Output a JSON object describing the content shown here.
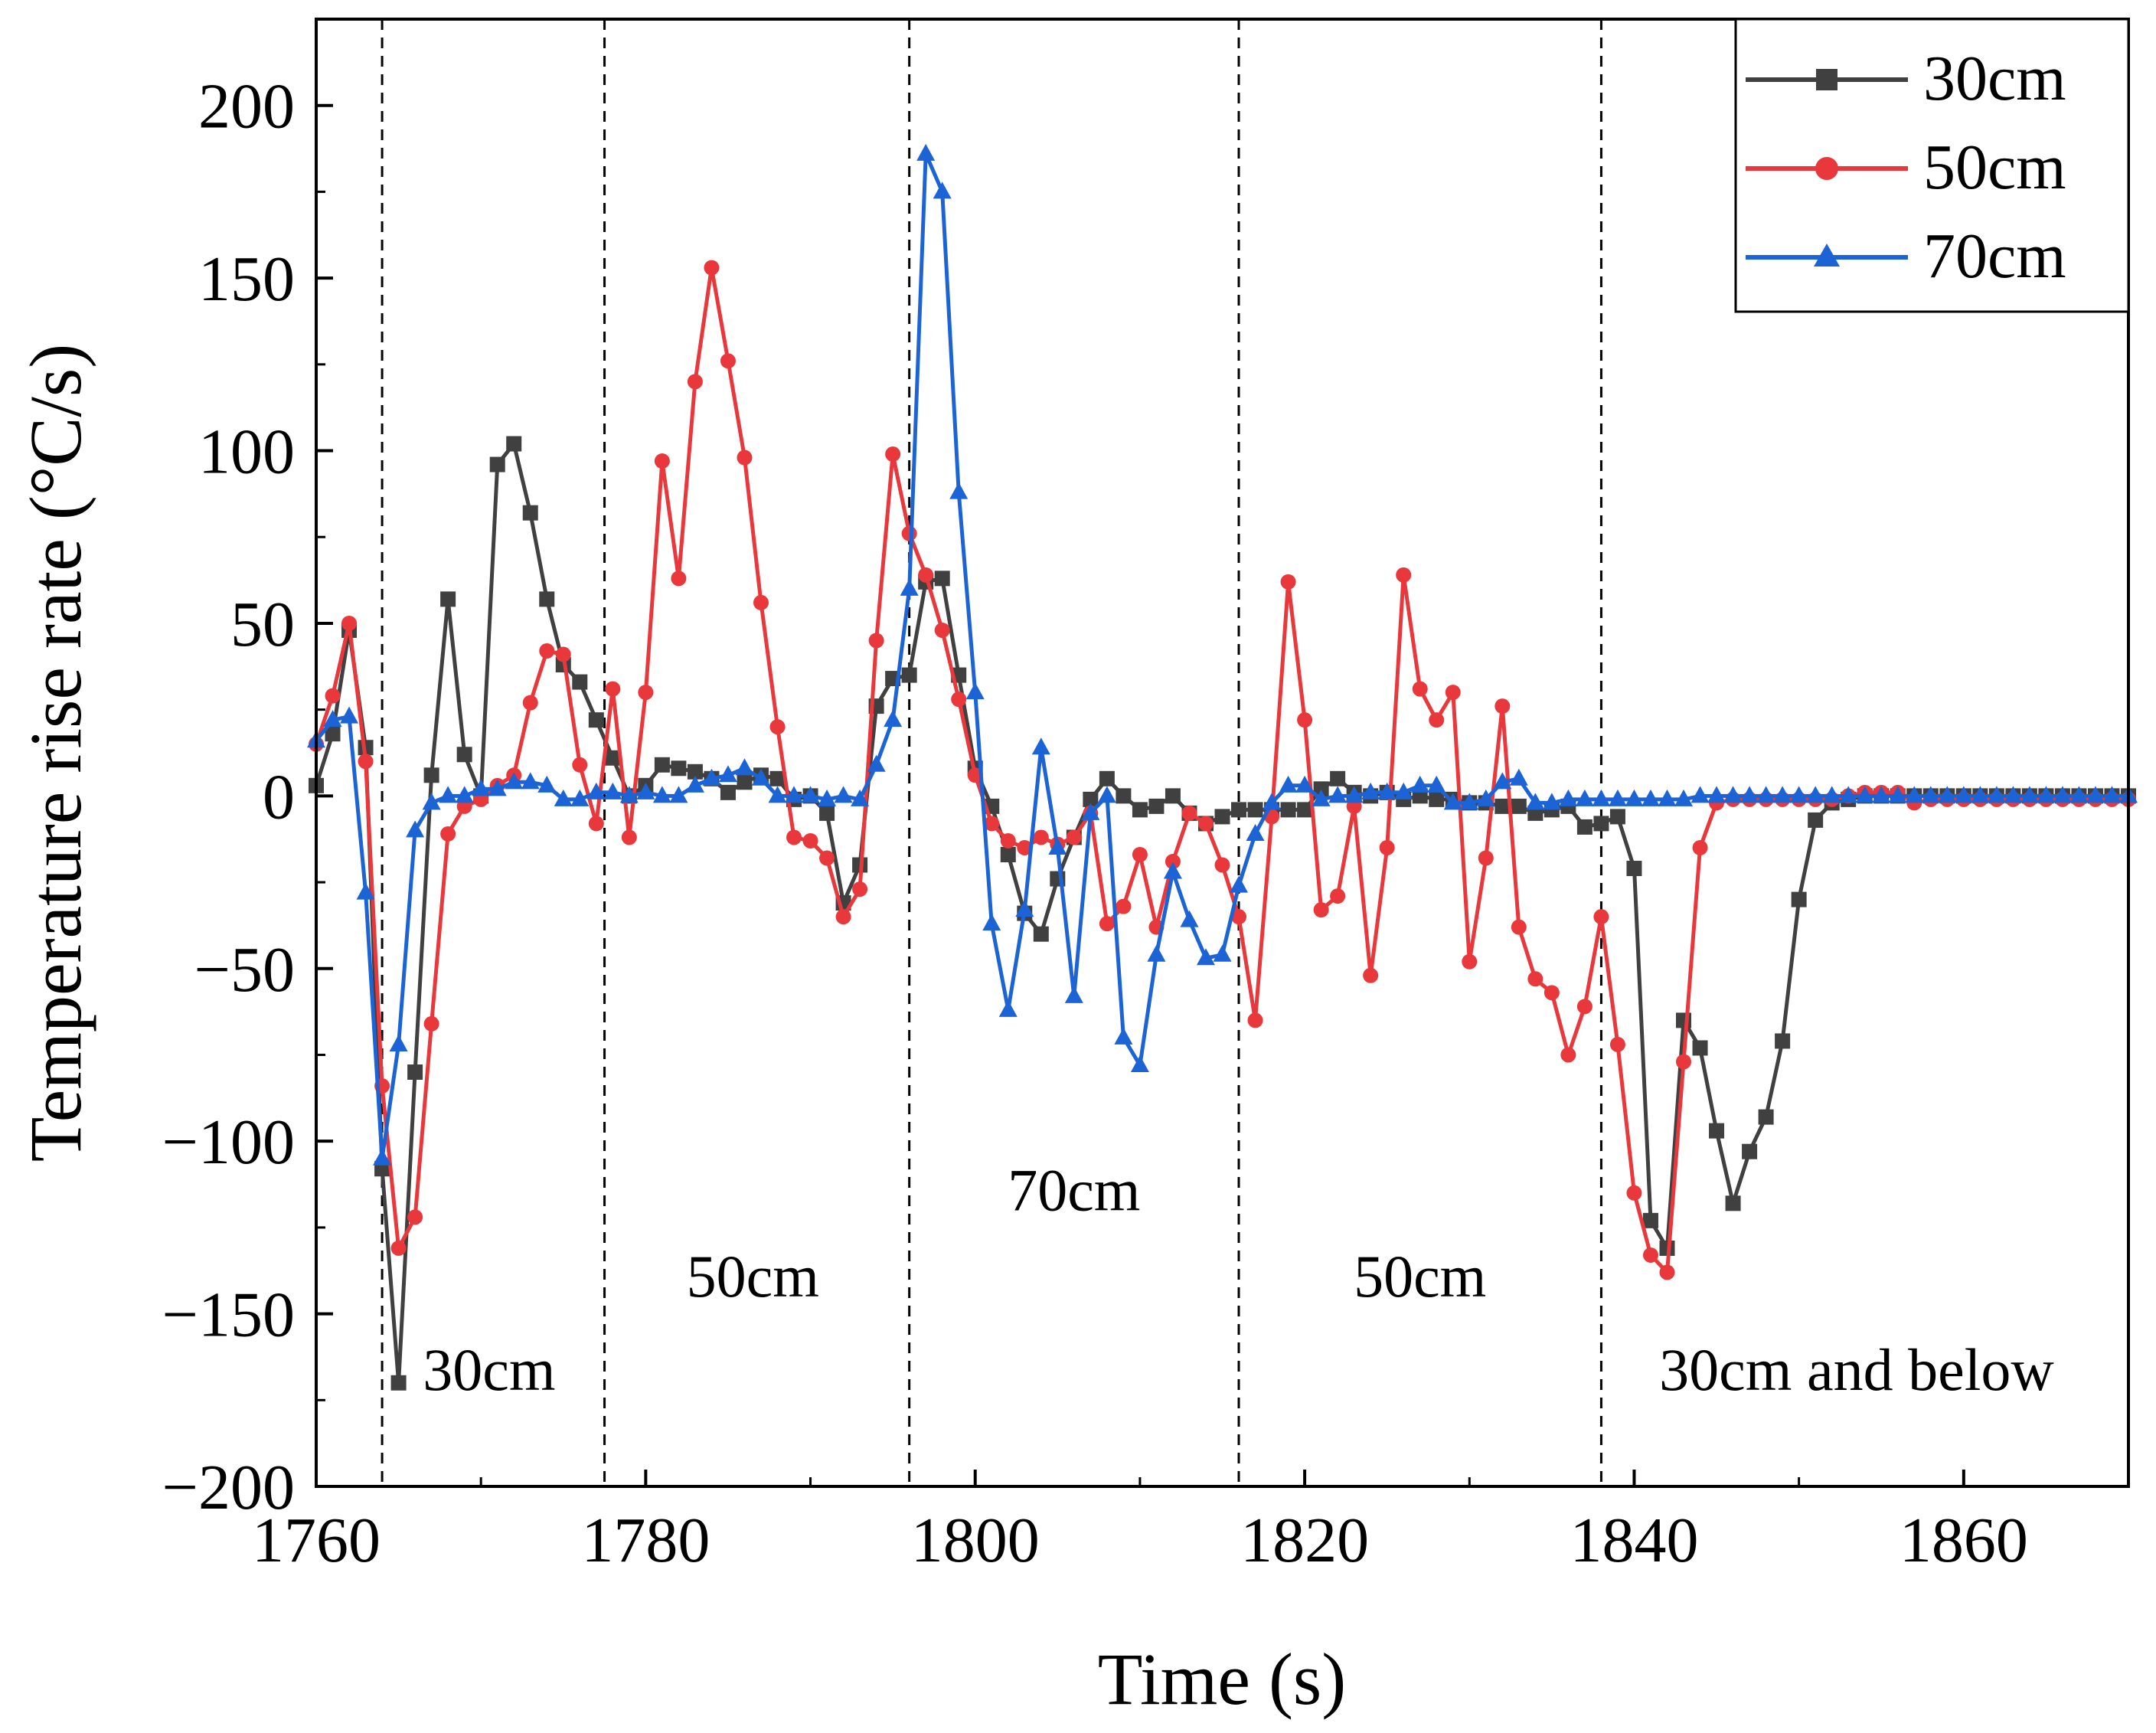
{
  "chart_data": {
    "type": "line",
    "title": "",
    "xlabel": "Time (s)",
    "ylabel": "Temperature rise rate (°C/s)",
    "xlim": [
      1760,
      1870
    ],
    "ylim": [
      -200,
      225
    ],
    "xticks": [
      1760,
      1780,
      1800,
      1820,
      1840,
      1860
    ],
    "yticks": [
      -200,
      -150,
      -100,
      -50,
      0,
      50,
      100,
      150,
      200
    ],
    "xtick_labels": [
      "1760",
      "1780",
      "1800",
      "1820",
      "1840",
      "1860"
    ],
    "ytick_labels": [
      "−200",
      "−150",
      "−100",
      "−50",
      "0",
      "50",
      "100",
      "150",
      "200"
    ],
    "grid": false,
    "legend_position": "top-right",
    "region_dividers": [
      1764,
      1777.5,
      1796,
      1816,
      1838
    ],
    "region_labels": [
      {
        "text": "30cm",
        "x": 1770.5,
        "y": -172
      },
      {
        "text": "50cm",
        "x": 1786.5,
        "y": -145
      },
      {
        "text": "70cm",
        "x": 1806,
        "y": -120
      },
      {
        "text": "50cm",
        "x": 1827,
        "y": -145
      },
      {
        "text": "30cm and below",
        "x": 1853.5,
        "y": -172
      }
    ],
    "series": [
      {
        "name": "30cm",
        "color": "#404040",
        "marker": "square",
        "x": [
          1760,
          1761,
          1762,
          1763,
          1764,
          1765,
          1766,
          1767,
          1768,
          1769,
          1770,
          1771,
          1772,
          1773,
          1774,
          1775,
          1776,
          1777,
          1778,
          1779,
          1780,
          1781,
          1782,
          1783,
          1784,
          1785,
          1786,
          1787,
          1788,
          1789,
          1790,
          1791,
          1792,
          1793,
          1794,
          1795,
          1796,
          1797,
          1798,
          1799,
          1800,
          1801,
          1802,
          1803,
          1804,
          1805,
          1806,
          1807,
          1808,
          1809,
          1810,
          1811,
          1812,
          1813,
          1814,
          1815,
          1816,
          1817,
          1818,
          1819,
          1820,
          1821,
          1822,
          1823,
          1824,
          1825,
          1826,
          1827,
          1828,
          1829,
          1830,
          1831,
          1832,
          1833,
          1834,
          1835,
          1836,
          1837,
          1838,
          1839,
          1840,
          1841,
          1842,
          1843,
          1844,
          1845,
          1846,
          1847,
          1848,
          1849,
          1850,
          1851,
          1852,
          1853,
          1854,
          1855,
          1856,
          1857,
          1858,
          1859,
          1860,
          1861,
          1862,
          1863,
          1864,
          1865,
          1866,
          1867,
          1868,
          1869,
          1870
        ],
        "values": [
          3,
          18,
          48,
          14,
          -108,
          -170,
          -80,
          6,
          57,
          12,
          0,
          96,
          102,
          82,
          57,
          38,
          33,
          22,
          11,
          0,
          3,
          9,
          8,
          7,
          5,
          1,
          4,
          6,
          5,
          -1,
          0,
          -5,
          -31,
          -20,
          26,
          34,
          35,
          62,
          63,
          35,
          8,
          -3,
          -17,
          -34,
          -40,
          -24,
          -12,
          -1,
          5,
          0,
          -4,
          -3,
          0,
          -5,
          -8,
          -6,
          -4,
          -4,
          -4,
          -4,
          -4,
          2,
          5,
          1,
          0,
          1,
          -1,
          0,
          -1,
          -1,
          -2,
          -2,
          -3,
          -3,
          -5,
          -4,
          -3,
          -9,
          -8,
          -6,
          -21,
          -123,
          -131,
          -65,
          -73,
          -97,
          -118,
          -103,
          -93,
          -71,
          -30,
          -7,
          -2,
          -1,
          0,
          0,
          0,
          0,
          0,
          0,
          0,
          0,
          0,
          0,
          0,
          0,
          0,
          0,
          0,
          0,
          0
        ]
      },
      {
        "name": "50cm",
        "color": "#e8383b",
        "marker": "circle",
        "x": [
          1760,
          1761,
          1762,
          1763,
          1764,
          1765,
          1766,
          1767,
          1768,
          1769,
          1770,
          1771,
          1772,
          1773,
          1774,
          1775,
          1776,
          1777,
          1778,
          1779,
          1780,
          1781,
          1782,
          1783,
          1784,
          1785,
          1786,
          1787,
          1788,
          1789,
          1790,
          1791,
          1792,
          1793,
          1794,
          1795,
          1796,
          1797,
          1798,
          1799,
          1800,
          1801,
          1802,
          1803,
          1804,
          1805,
          1806,
          1807,
          1808,
          1809,
          1810,
          1811,
          1812,
          1813,
          1814,
          1815,
          1816,
          1817,
          1818,
          1819,
          1820,
          1821,
          1822,
          1823,
          1824,
          1825,
          1826,
          1827,
          1828,
          1829,
          1830,
          1831,
          1832,
          1833,
          1834,
          1835,
          1836,
          1837,
          1838,
          1839,
          1840,
          1841,
          1842,
          1843,
          1844,
          1845,
          1846,
          1847,
          1848,
          1849,
          1850,
          1851,
          1852,
          1853,
          1854,
          1855,
          1856,
          1857,
          1858,
          1859,
          1860,
          1861,
          1862,
          1863,
          1864,
          1865,
          1866,
          1867,
          1868,
          1869,
          1870
        ],
        "values": [
          15,
          29,
          50,
          10,
          -84,
          -131,
          -122,
          -66,
          -11,
          -3,
          -1,
          3,
          6,
          27,
          42,
          41,
          9,
          -8,
          31,
          -12,
          30,
          97,
          63,
          120,
          153,
          126,
          98,
          56,
          20,
          -12,
          -13,
          -18,
          -35,
          -27,
          45,
          99,
          76,
          64,
          48,
          28,
          6,
          -8,
          -13,
          -15,
          -12,
          -14,
          -12,
          -5,
          -37,
          -32,
          -17,
          -38,
          -19,
          -5,
          -8,
          -20,
          -35,
          -65,
          -6,
          62,
          22,
          -33,
          -29,
          -3,
          -52,
          -15,
          64,
          31,
          22,
          30,
          -48,
          -18,
          26,
          -38,
          -53,
          -57,
          -75,
          -61,
          -35,
          -72,
          -115,
          -133,
          -138,
          -77,
          -15,
          -2,
          -1,
          -1,
          -1,
          -1,
          -1,
          -1,
          -1,
          0,
          1,
          1,
          1,
          -2,
          -1,
          -1,
          -1,
          -1,
          -1,
          -1,
          -1,
          -1,
          -1,
          -1,
          -1,
          -1,
          -1
        ]
      },
      {
        "name": "70cm",
        "color": "#1c64d6",
        "marker": "triangle",
        "x": [
          1760,
          1761,
          1762,
          1763,
          1764,
          1765,
          1766,
          1767,
          1768,
          1769,
          1770,
          1771,
          1772,
          1773,
          1774,
          1775,
          1776,
          1777,
          1778,
          1779,
          1780,
          1781,
          1782,
          1783,
          1784,
          1785,
          1786,
          1787,
          1788,
          1789,
          1790,
          1791,
          1792,
          1793,
          1794,
          1795,
          1796,
          1797,
          1798,
          1799,
          1800,
          1801,
          1802,
          1803,
          1804,
          1805,
          1806,
          1807,
          1808,
          1809,
          1810,
          1811,
          1812,
          1813,
          1814,
          1815,
          1816,
          1817,
          1818,
          1819,
          1820,
          1821,
          1822,
          1823,
          1824,
          1825,
          1826,
          1827,
          1828,
          1829,
          1830,
          1831,
          1832,
          1833,
          1834,
          1835,
          1836,
          1837,
          1838,
          1839,
          1840,
          1841,
          1842,
          1843,
          1844,
          1845,
          1846,
          1847,
          1848,
          1849,
          1850,
          1851,
          1852,
          1853,
          1854,
          1855,
          1856,
          1857,
          1858,
          1859,
          1860,
          1861,
          1862,
          1863,
          1864,
          1865,
          1866,
          1867,
          1868,
          1869,
          1870
        ],
        "values": [
          16,
          22,
          23,
          -28,
          -105,
          -72,
          -10,
          -2,
          0,
          0,
          2,
          2,
          4,
          4,
          3,
          -1,
          -1,
          1,
          1,
          0,
          1,
          0,
          0,
          3,
          5,
          6,
          8,
          5,
          0,
          0,
          0,
          -1,
          0,
          -1,
          9,
          22,
          60,
          186,
          175,
          88,
          30,
          -37,
          -62,
          -33,
          14,
          -15,
          -58,
          -5,
          0,
          -70,
          -78,
          -46,
          -22,
          -36,
          -47,
          -46,
          -26,
          -11,
          -2,
          3,
          3,
          -1,
          0,
          0,
          1,
          1,
          1,
          3,
          3,
          -2,
          -2,
          -1,
          4,
          5,
          -2,
          -2,
          -1,
          -1,
          -1,
          -1,
          -1,
          -1,
          -1,
          -1,
          0,
          0,
          0,
          0,
          0,
          0,
          0,
          0,
          0,
          0,
          0,
          0,
          0,
          0,
          0,
          0,
          0,
          0,
          0,
          0,
          0,
          0,
          0,
          0,
          0,
          0,
          0
        ]
      }
    ]
  }
}
